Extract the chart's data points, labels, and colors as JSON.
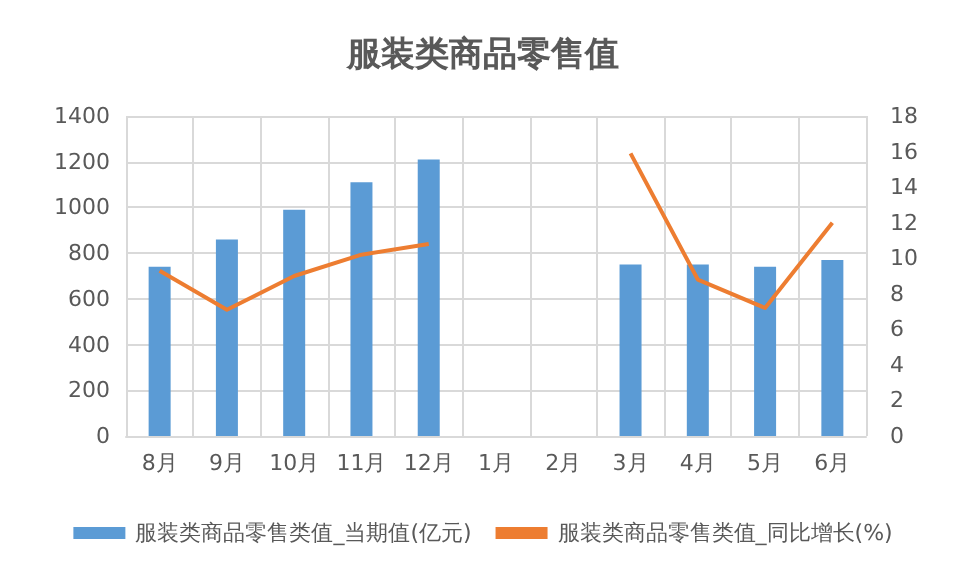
{
  "chart_data": {
    "type": "bar",
    "title": "服装类商品零售值",
    "categories": [
      "8月",
      "9月",
      "10月",
      "11月",
      "12月",
      "1月",
      "2月",
      "3月",
      "4月",
      "5月",
      "6月"
    ],
    "series": [
      {
        "name": "服装类商品零售类值_当期值(亿元)",
        "color": "#5b9bd5",
        "values": [
          740,
          860,
          990,
          1110,
          1210,
          null,
          null,
          750,
          750,
          740,
          770
        ]
      },
      {
        "name": "服装类商品零售类值_同比增长(%)",
        "type": "line",
        "axis": "y2",
        "color": "#ed7d31",
        "values": [
          9.3,
          7.1,
          9.0,
          10.2,
          10.8,
          null,
          null,
          15.9,
          8.8,
          7.2,
          12.0
        ]
      }
    ],
    "ylim": [
      0,
      1400
    ],
    "yticks": [
      0,
      200,
      400,
      600,
      800,
      1000,
      1200,
      1400
    ],
    "y2lim": [
      0,
      18
    ],
    "y2ticks": [
      0,
      2,
      4,
      6,
      8,
      10,
      12,
      14,
      16,
      18
    ],
    "grid": true,
    "legend": "bottom",
    "marker": "none"
  }
}
